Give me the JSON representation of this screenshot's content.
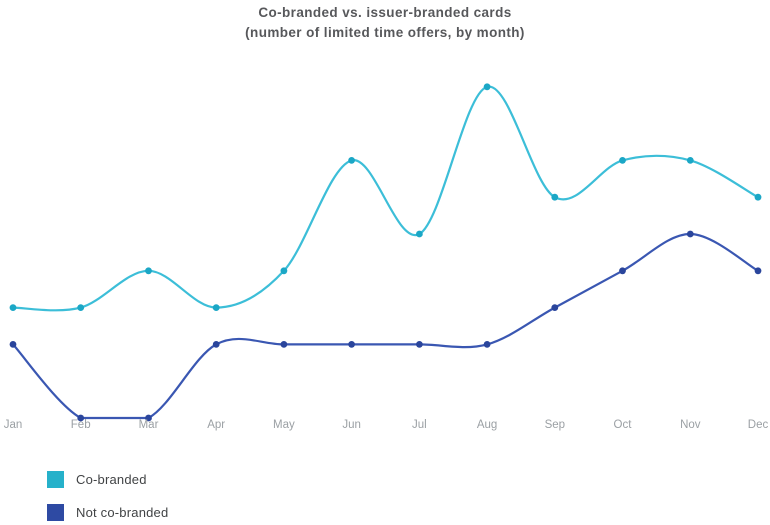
{
  "chart_data": {
    "type": "line",
    "title": "Co-branded vs. issuer-branded cards",
    "subtitle": "(number of limited time offers, by month)",
    "categories": [
      "Jan",
      "Feb",
      "Mar",
      "Apr",
      "May",
      "Jun",
      "Jul",
      "Aug",
      "Sep",
      "Oct",
      "Nov",
      "Dec"
    ],
    "series": [
      {
        "name": "Co-branded",
        "legend_color": "#26B1CA",
        "line_color": "#3CBED8",
        "dot_color": "#1BA7C6",
        "values": [
          3,
          3,
          4,
          3,
          4,
          7,
          5,
          9,
          6,
          7,
          7,
          6
        ]
      },
      {
        "name": "Not co-branded",
        "legend_color": "#2E4AA3",
        "line_color": "#3A57B2",
        "dot_color": "#2A459C",
        "values": [
          2,
          0,
          0,
          2,
          2,
          2,
          2,
          2,
          3,
          4,
          5,
          4
        ]
      }
    ],
    "xlabel": "",
    "ylabel": "",
    "ylim": [
      0,
      9.5
    ],
    "grid": false,
    "y_axis_visible": false,
    "x_axis_line_visible": false,
    "curve": "smooth-spline",
    "legend_position": "bottom-left"
  },
  "colors": {
    "title_text": "#57585B",
    "axis_label_text": "#9BA0A4",
    "legend_text": "#414345",
    "background": "#FFFFFF"
  }
}
